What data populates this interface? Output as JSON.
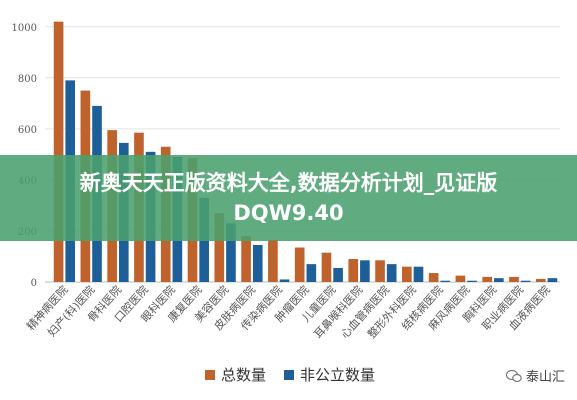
{
  "chart_data": {
    "type": "bar",
    "categories": [
      "精神病医院",
      "妇产(科)医院",
      "骨科医院",
      "口腔医院",
      "眼科医院",
      "康复医院",
      "美容医院",
      "皮肤病医院",
      "传染病医院",
      "肿瘤医院",
      "儿童医院",
      "耳鼻喉科医院",
      "心血管病医院",
      "整形外科医院",
      "结核病医院",
      "麻风病医院",
      "胸科医院",
      "职业病医院",
      "血液病医院"
    ],
    "series": [
      {
        "name": "总数量",
        "color": "#c0622b",
        "values": [
          1020,
          750,
          595,
          585,
          530,
          485,
          270,
          180,
          165,
          135,
          115,
          90,
          85,
          60,
          35,
          25,
          20,
          20,
          12
        ]
      },
      {
        "name": "非公立数量",
        "color": "#1f5f99",
        "values": [
          790,
          690,
          545,
          510,
          490,
          330,
          230,
          145,
          10,
          70,
          55,
          85,
          70,
          60,
          5,
          5,
          15,
          5,
          15
        ]
      }
    ],
    "yticks": [
      0,
      200,
      400,
      600,
      800,
      1000
    ],
    "ylim": [
      0,
      1050
    ],
    "grid": true,
    "legend_position": "bottom"
  },
  "banner": {
    "line1": "新奥天天正版资料大全,数据分析计划_见证版",
    "line2": "DQW9.40"
  },
  "legend": {
    "items": [
      {
        "label": "总数量",
        "color": "#c0622b"
      },
      {
        "label": "非公立数量",
        "color": "#1f5f99"
      }
    ]
  },
  "watermark": {
    "text": "泰山汇"
  }
}
